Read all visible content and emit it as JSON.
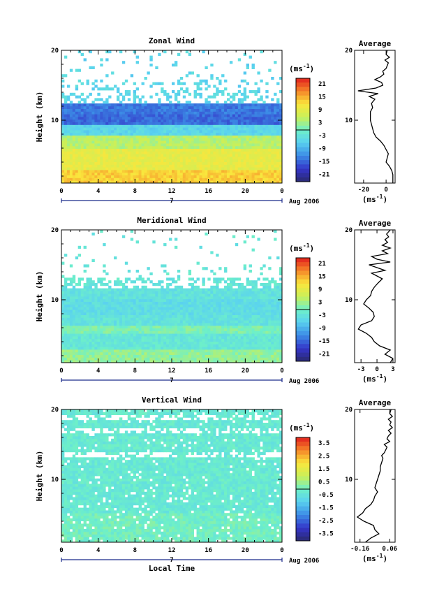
{
  "chart_data": [
    {
      "type": "heatmap",
      "title": "Zonal Wind",
      "ylabel": "Height (km)",
      "x_ticks": [
        "0",
        "4",
        "8",
        "12",
        "16",
        "20",
        "0"
      ],
      "y_ticks": [
        "10",
        "20"
      ],
      "date_marker": "7",
      "date_label": "Aug 2006",
      "xlim": [
        0,
        24
      ],
      "ylim": [
        1,
        20
      ],
      "colorbar": {
        "unit": "(ms",
        "unit_exp": "-1",
        "unit_close": ")",
        "labels": [
          "21",
          "15",
          "9",
          "3",
          "-3",
          "-9",
          "-15",
          "-21"
        ],
        "range": [
          -24,
          24
        ]
      },
      "average": {
        "title": "Average",
        "xlabel": "(ms",
        "xlabel_exp": "-1",
        "xlabel_close": ")",
        "x_ticks": [
          "-20",
          "0"
        ],
        "x_tick_values": [
          -20,
          0
        ],
        "xlim": [
          -28,
          8
        ],
        "y_ticks": [
          "10",
          "20"
        ],
        "heights": [
          1,
          1.6,
          2.2,
          2.8,
          3.4,
          4,
          4.6,
          5.2,
          5.8,
          6.4,
          7,
          7.6,
          8.2,
          8.8,
          9.4,
          10,
          10.6,
          11.2,
          11.8,
          12.4,
          13,
          13.4,
          13.8,
          14.2,
          14.6,
          15,
          15.4,
          15.8,
          16.2,
          16.6,
          17,
          17.4,
          17.8,
          18.2,
          18.6,
          19,
          19.4,
          20
        ],
        "values": [
          6,
          6,
          6,
          5,
          3,
          0,
          1,
          2,
          0,
          -2,
          -5,
          -9,
          -11,
          -12,
          -13,
          -14,
          -14,
          -14,
          -12,
          -13,
          -10,
          -15,
          -7,
          -25,
          -9,
          -3,
          -4,
          -10,
          -5,
          -2,
          -3,
          0,
          1,
          2,
          -1,
          3,
          0,
          1
        ]
      }
    },
    {
      "type": "heatmap",
      "title": "Meridional Wind",
      "ylabel": "Height (km)",
      "x_ticks": [
        "0",
        "4",
        "8",
        "12",
        "16",
        "20",
        "0"
      ],
      "y_ticks": [
        "10",
        "20"
      ],
      "date_marker": "7",
      "date_label": "Aug 2006",
      "xlim": [
        0,
        24
      ],
      "ylim": [
        1,
        20
      ],
      "colorbar": {
        "unit": "(ms",
        "unit_exp": "-1",
        "unit_close": ")",
        "labels": [
          "21",
          "15",
          "9",
          "3",
          "-3",
          "-9",
          "-15",
          "-21"
        ],
        "range": [
          -24,
          24
        ]
      },
      "average": {
        "title": "Average",
        "xlabel": "(ms",
        "xlabel_exp": "-1",
        "xlabel_close": ")",
        "x_ticks": [
          "-3",
          "0",
          "3"
        ],
        "x_tick_values": [
          -3,
          0,
          3
        ],
        "xlim": [
          -4.2,
          3.4
        ],
        "y_ticks": [
          "10",
          "20"
        ],
        "heights": [
          1,
          1.6,
          2.2,
          2.8,
          3.4,
          4,
          4.6,
          5.2,
          5.8,
          6.4,
          7,
          7.6,
          8.2,
          8.8,
          9.4,
          10,
          10.6,
          11.2,
          11.8,
          12.4,
          13,
          13.4,
          13.8,
          14.2,
          14.6,
          15,
          15.4,
          15.8,
          16.2,
          16.6,
          17,
          17.4,
          17.8,
          18.2,
          18.6,
          19,
          19.4,
          20
        ],
        "values": [
          2.5,
          3,
          1.5,
          2.5,
          0.5,
          -0.5,
          -1,
          -2,
          -3.5,
          -3,
          -1,
          -0.5,
          -0.7,
          -1.5,
          -2.5,
          -2,
          -1.2,
          -1,
          -0.5,
          0.2,
          1,
          0,
          -1,
          1.5,
          0,
          -1.5,
          2.5,
          0,
          -1,
          2,
          1,
          2.5,
          1,
          2,
          1.5,
          2.2,
          1.8,
          2.5
        ]
      }
    },
    {
      "type": "heatmap",
      "title": "Vertical Wind",
      "xlabel": "Local Time",
      "ylabel": "Height (km)",
      "x_ticks": [
        "0",
        "4",
        "8",
        "12",
        "16",
        "20",
        "0"
      ],
      "y_ticks": [
        "10",
        "20"
      ],
      "date_marker": "7",
      "date_label": "Aug 2006",
      "xlim": [
        0,
        24
      ],
      "ylim": [
        1,
        20
      ],
      "colorbar": {
        "unit": "(ms",
        "unit_exp": "-1",
        "unit_close": ")",
        "labels": [
          "3.5",
          "2.5",
          "1.5",
          "0.5",
          "-0.5",
          "-1.5",
          "-2.5",
          "-3.5"
        ],
        "range": [
          -4,
          4
        ]
      },
      "average": {
        "title": "Average",
        "xlabel": "(ms",
        "xlabel_exp": "-1",
        "xlabel_close": ")",
        "x_ticks": [
          "-0.16",
          "0.06"
        ],
        "x_tick_values": [
          -0.16,
          0.06
        ],
        "xlim": [
          -0.2,
          0.1
        ],
        "y_ticks": [
          "10",
          "20"
        ],
        "heights": [
          1,
          1.6,
          2.2,
          2.8,
          3.4,
          4,
          4.6,
          5.2,
          5.8,
          6.4,
          7,
          7.6,
          8.2,
          8.8,
          9.4,
          10,
          10.6,
          11.2,
          11.8,
          12.4,
          13,
          13.4,
          13.8,
          14.2,
          14.6,
          15,
          15.4,
          15.8,
          16.2,
          16.6,
          17,
          17.4,
          17.8,
          18.2,
          18.6,
          19,
          19.4,
          20
        ],
        "values": [
          -0.12,
          -0.08,
          -0.02,
          -0.05,
          -0.06,
          -0.13,
          -0.18,
          -0.14,
          -0.12,
          -0.08,
          -0.06,
          -0.05,
          -0.03,
          -0.05,
          -0.04,
          -0.03,
          -0.02,
          -0.01,
          -0.01,
          0,
          0.01,
          0,
          0.02,
          0.03,
          0.04,
          0.02,
          0.06,
          0.04,
          0.05,
          0.07,
          0.05,
          0.08,
          0.06,
          0.07,
          0.05,
          0.08,
          0.06,
          0.07
        ]
      }
    }
  ]
}
